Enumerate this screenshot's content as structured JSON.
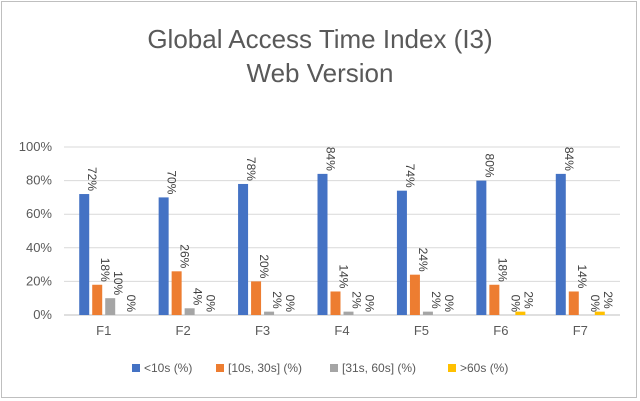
{
  "chart_data": {
    "type": "bar",
    "title": "Global Access Time Index (I3)",
    "subtitle": "Web Version",
    "categories": [
      "F1",
      "F2",
      "F3",
      "F4",
      "F5",
      "F6",
      "F7"
    ],
    "series": [
      {
        "name": "<10s (%)",
        "color": "#4472c4",
        "values": [
          72,
          70,
          78,
          84,
          74,
          80,
          84
        ]
      },
      {
        "name": "[10s, 30s] (%)",
        "color": "#ed7d31",
        "values": [
          18,
          26,
          20,
          14,
          24,
          18,
          14
        ]
      },
      {
        "name": "[31s, 60s] (%)",
        "color": "#a5a5a5",
        "values": [
          10,
          4,
          2,
          2,
          2,
          0,
          0
        ]
      },
      {
        "name": ">60s (%)",
        "color": "#ffc000",
        "values": [
          0,
          0,
          0,
          0,
          0,
          2,
          2
        ]
      }
    ],
    "yticks": [
      "0%",
      "20%",
      "40%",
      "60%",
      "80%",
      "100%"
    ],
    "ylim": [
      0,
      100
    ],
    "grid": true,
    "legend": "bottom",
    "data_label_suffix": "%"
  }
}
